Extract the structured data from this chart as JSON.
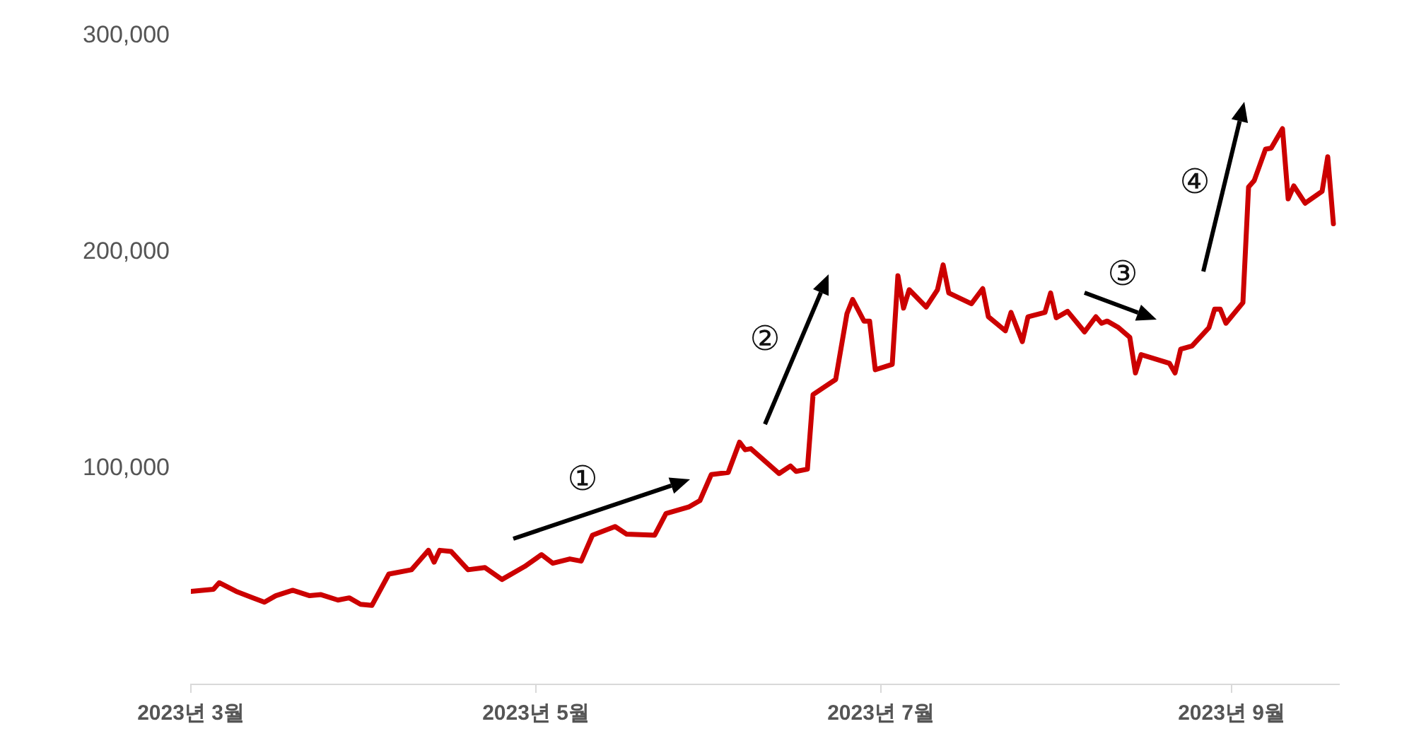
{
  "chart_data": {
    "type": "line",
    "x": [
      "2023-03-01",
      "2023-03-05",
      "2023-03-06",
      "2023-03-09",
      "2023-03-12",
      "2023-03-14",
      "2023-03-16",
      "2023-03-19",
      "2023-03-22",
      "2023-03-24",
      "2023-03-27",
      "2023-03-29",
      "2023-03-31",
      "2023-04-02",
      "2023-04-05",
      "2023-04-09",
      "2023-04-10",
      "2023-04-12",
      "2023-04-13",
      "2023-04-14",
      "2023-04-16",
      "2023-04-19",
      "2023-04-22",
      "2023-04-25",
      "2023-04-29",
      "2023-05-02",
      "2023-05-04",
      "2023-05-07",
      "2023-05-09",
      "2023-05-11",
      "2023-05-15",
      "2023-05-17",
      "2023-05-22",
      "2023-05-24",
      "2023-05-28",
      "2023-05-30",
      "2023-06-01",
      "2023-06-04",
      "2023-06-06",
      "2023-06-07",
      "2023-06-08",
      "2023-06-13",
      "2023-06-15",
      "2023-06-16",
      "2023-06-18",
      "2023-06-19",
      "2023-06-21",
      "2023-06-23",
      "2023-06-25",
      "2023-06-26",
      "2023-06-28",
      "2023-06-29",
      "2023-06-30",
      "2023-07-03",
      "2023-07-04",
      "2023-07-05",
      "2023-07-06",
      "2023-07-09",
      "2023-07-11",
      "2023-07-12",
      "2023-07-13",
      "2023-07-17",
      "2023-07-19",
      "2023-07-20",
      "2023-07-23",
      "2023-07-24",
      "2023-07-26",
      "2023-07-27",
      "2023-07-30",
      "2023-07-31",
      "2023-08-01",
      "2023-08-03",
      "2023-08-06",
      "2023-08-08",
      "2023-08-09",
      "2023-08-10",
      "2023-08-12",
      "2023-08-14",
      "2023-08-15",
      "2023-08-16",
      "2023-08-21",
      "2023-08-22",
      "2023-08-23",
      "2023-08-25",
      "2023-08-28",
      "2023-08-29",
      "2023-08-30",
      "2023-08-31",
      "2023-09-03",
      "2023-09-04",
      "2023-09-05",
      "2023-09-07",
      "2023-09-08",
      "2023-09-10",
      "2023-09-11",
      "2023-09-12",
      "2023-09-14",
      "2023-09-17",
      "2023-09-18",
      "2023-09-19"
    ],
    "series": [
      {
        "color": "#cc0000",
        "values": [
          43000,
          44000,
          47000,
          43000,
          40000,
          38000,
          41000,
          43500,
          41000,
          41500,
          39000,
          40000,
          37000,
          36500,
          51000,
          53000,
          56000,
          62000,
          56500,
          62000,
          61500,
          53000,
          54000,
          48500,
          54500,
          60000,
          56000,
          58000,
          57000,
          69000,
          73000,
          69500,
          69000,
          79000,
          82000,
          85000,
          97000,
          98000,
          112000,
          108500,
          109000,
          97500,
          101000,
          98500,
          99500,
          134000,
          137500,
          141000,
          171500,
          178000,
          168000,
          168000,
          145500,
          148000,
          189000,
          174000,
          182500,
          174500,
          182500,
          194000,
          181000,
          176000,
          183000,
          170000,
          163500,
          172000,
          158500,
          170000,
          172000,
          181000,
          169500,
          172500,
          163000,
          170000,
          167000,
          168000,
          165000,
          160500,
          144000,
          152500,
          148500,
          144000,
          155000,
          156500,
          165000,
          173500,
          173500,
          167000,
          176500,
          230000,
          233000,
          247500,
          248000,
          257000,
          224500,
          230500,
          222500,
          228000,
          244000,
          213000
        ]
      }
    ],
    "xlim": [
      "2023-03-01",
      "2023-09-20"
    ],
    "xticks": [
      {
        "value": "2023-03-01",
        "label": "2023년 3월"
      },
      {
        "value": "2023-05-01",
        "label": "2023년 5월"
      },
      {
        "value": "2023-07-01",
        "label": "2023년 7월"
      },
      {
        "value": "2023-09-01",
        "label": "2023년 9월"
      }
    ],
    "ylim": [
      0,
      300000
    ],
    "yticks": [
      {
        "value": 100000,
        "label": "100,000"
      },
      {
        "value": 200000,
        "label": "200,000"
      },
      {
        "value": 300000,
        "label": "300,000"
      }
    ],
    "annotations": [
      "①",
      "②",
      "③",
      "④"
    ],
    "grid": false,
    "legend": false,
    "marker": "none",
    "line_style": "solid"
  }
}
